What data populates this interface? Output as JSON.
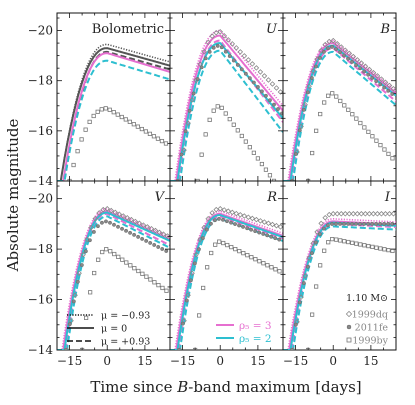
{
  "figure": {
    "xlabel_pre": "Time since ",
    "xlabel_b": "B",
    "xlabel_post": "-band maximum [days]",
    "ylabel": "Absolute magnitude"
  },
  "legend_mu": {
    "entries": [
      {
        "label": "μ = −0.93",
        "dash": "1.2,1.5"
      },
      {
        "label": "μ = 0",
        "dash": ""
      },
      {
        "label": "μ = +0.93",
        "dash": "6,3"
      }
    ]
  },
  "legend_rho": {
    "entries": [
      {
        "label": "ρ₅ = 3",
        "color": "#e66fd0"
      },
      {
        "label": "ρ₅ = 2",
        "color": "#2dbfd0"
      }
    ]
  },
  "legend_obs": {
    "title": "1.10 M⊙",
    "entries": [
      {
        "label": "1999dq",
        "marker": "diamond"
      },
      {
        "label": "2011fe",
        "marker": "circle"
      },
      {
        "label": "1999by",
        "marker": "square"
      }
    ]
  },
  "colors": {
    "rho3": "#e66fd0",
    "rho2": "#2dbfd0",
    "bolo": "#555555",
    "obs": "#888888"
  },
  "chart_data": [
    {
      "type": "line",
      "title": "Bolometric",
      "xlim": [
        -20,
        25
      ],
      "ylim": [
        -14,
        -20.7
      ],
      "xticks": [
        -15,
        0,
        15
      ],
      "yticks": [
        -20,
        -18,
        -16,
        -14
      ],
      "series": [
        {
          "color": "bolo",
          "style": "dotted",
          "peak": -19.45,
          "t0": -18.5,
          "decline": 0.028,
          "w": 8
        },
        {
          "color": "bolo",
          "style": "solid",
          "peak": -19.3,
          "t0": -18.5,
          "decline": 0.028,
          "w": 8
        },
        {
          "color": "bolo",
          "style": "dashed",
          "peak": -19.15,
          "t0": -17,
          "decline": 0.028,
          "w": 8
        },
        {
          "color": "rho3",
          "style": "solid",
          "peak": -19.1,
          "t0": -17.5,
          "decline": 0.03,
          "w": 8
        },
        {
          "color": "rho2",
          "style": "dashed",
          "peak": -18.8,
          "t0": -17,
          "decline": 0.03,
          "w": 8
        }
      ],
      "obs": [
        {
          "name": "1999by",
          "peak": -16.9,
          "t0": -15,
          "decline": 0.06,
          "w": 7
        }
      ]
    },
    {
      "type": "line",
      "title": "U",
      "xlim": [
        -20,
        25
      ],
      "ylim": [
        -14,
        -20.7
      ],
      "xticks": [
        -15,
        0,
        15
      ],
      "yticks": [
        -20,
        -18,
        -16,
        -14
      ],
      "series": [
        {
          "color": "rho3",
          "style": "dotted",
          "peak": -20.0,
          "t0": -18,
          "decline": 0.12,
          "w": 6
        },
        {
          "color": "rho3",
          "style": "solid",
          "peak": -19.8,
          "t0": -17.5,
          "decline": 0.12,
          "w": 6
        },
        {
          "color": "rho3",
          "style": "dashed",
          "peak": -19.6,
          "t0": -16.5,
          "decline": 0.13,
          "w": 6
        },
        {
          "color": "rho2",
          "style": "solid",
          "peak": -19.5,
          "t0": -17,
          "decline": 0.12,
          "w": 6
        },
        {
          "color": "rho2",
          "style": "dashed",
          "peak": -19.2,
          "t0": -16,
          "decline": 0.13,
          "w": 6
        }
      ],
      "obs": [
        {
          "name": "1999dq",
          "peak": -19.95,
          "t0": -16,
          "decline": 0.1,
          "w": 6
        },
        {
          "name": "2011fe",
          "peak": -19.4,
          "t0": -17,
          "decline": 0.11,
          "w": 6
        },
        {
          "name": "1999by",
          "peak": -17.0,
          "t0": -9,
          "decline": 0.14,
          "w": 5
        }
      ]
    },
    {
      "type": "line",
      "title": "B",
      "xlim": [
        -20,
        25
      ],
      "ylim": [
        -14,
        -20.7
      ],
      "xticks": [
        -15,
        0,
        15
      ],
      "yticks": [
        -20,
        -18,
        -16,
        -14
      ],
      "series": [
        {
          "color": "rho3",
          "style": "dotted",
          "peak": -19.6,
          "t0": -18,
          "decline": 0.08,
          "w": 8
        },
        {
          "color": "rho3",
          "style": "solid",
          "peak": -19.5,
          "t0": -17.5,
          "decline": 0.08,
          "w": 8
        },
        {
          "color": "rho3",
          "style": "dashed",
          "peak": -19.3,
          "t0": -16.5,
          "decline": 0.085,
          "w": 8
        },
        {
          "color": "rho2",
          "style": "solid",
          "peak": -19.4,
          "t0": -17,
          "decline": 0.08,
          "w": 8
        },
        {
          "color": "rho2",
          "style": "dashed",
          "peak": -19.15,
          "t0": -16,
          "decline": 0.085,
          "w": 8
        }
      ],
      "obs": [
        {
          "name": "1999dq",
          "peak": -19.6,
          "t0": -16,
          "decline": 0.08,
          "w": 7
        },
        {
          "name": "2011fe",
          "peak": -19.35,
          "t0": -16.5,
          "decline": 0.08,
          "w": 7
        },
        {
          "name": "1999by",
          "peak": -17.5,
          "t0": -10,
          "decline": 0.11,
          "w": 5
        }
      ]
    },
    {
      "type": "line",
      "title": "V",
      "xlim": [
        -20,
        25
      ],
      "ylim": [
        -14,
        -20.7
      ],
      "xticks": [
        -15,
        0,
        15
      ],
      "yticks": [
        -20,
        -18,
        -16,
        -14
      ],
      "series": [
        {
          "color": "rho3",
          "style": "dotted",
          "peak": -19.6,
          "t0": -18,
          "decline": 0.045,
          "w": 9
        },
        {
          "color": "rho3",
          "style": "solid",
          "peak": -19.5,
          "t0": -17.5,
          "decline": 0.045,
          "w": 9
        },
        {
          "color": "rho3",
          "style": "dashed",
          "peak": -19.4,
          "t0": -16.5,
          "decline": 0.05,
          "w": 9
        },
        {
          "color": "rho2",
          "style": "solid",
          "peak": -19.45,
          "t0": -17,
          "decline": 0.045,
          "w": 9
        },
        {
          "color": "rho2",
          "style": "dashed",
          "peak": -19.3,
          "t0": -16,
          "decline": 0.05,
          "w": 9
        }
      ],
      "obs": [
        {
          "name": "1999dq",
          "peak": -19.6,
          "t0": -16,
          "decline": 0.045,
          "w": 8
        },
        {
          "name": "2011fe",
          "peak": -19.1,
          "t0": -16.5,
          "decline": 0.05,
          "w": 8
        },
        {
          "name": "1999by",
          "peak": -18.0,
          "t0": -10,
          "decline": 0.07,
          "w": 6
        }
      ]
    },
    {
      "type": "line",
      "title": "R",
      "xlim": [
        -20,
        25
      ],
      "ylim": [
        -14,
        -20.7
      ],
      "xticks": [
        -15,
        0,
        15
      ],
      "yticks": [
        -20,
        -18,
        -16,
        -14
      ],
      "series": [
        {
          "color": "rho3",
          "style": "dotted",
          "peak": -19.5,
          "t0": -18,
          "decline": 0.035,
          "w": 10
        },
        {
          "color": "rho3",
          "style": "solid",
          "peak": -19.4,
          "t0": -17.5,
          "decline": 0.035,
          "w": 10
        },
        {
          "color": "rho3",
          "style": "dashed",
          "peak": -19.3,
          "t0": -16.5,
          "decline": 0.035,
          "w": 10
        },
        {
          "color": "rho2",
          "style": "solid",
          "peak": -19.35,
          "t0": -17,
          "decline": 0.035,
          "w": 10
        },
        {
          "color": "rho2",
          "style": "dashed",
          "peak": -19.2,
          "t0": -16,
          "decline": 0.035,
          "w": 10
        }
      ],
      "obs": [
        {
          "name": "1999dq",
          "peak": -19.6,
          "t0": -16,
          "decline": 0.03,
          "w": 9
        },
        {
          "name": "2011fe",
          "peak": -19.2,
          "t0": -16.5,
          "decline": 0.035,
          "w": 9
        },
        {
          "name": "1999by",
          "peak": -18.3,
          "t0": -10,
          "decline": 0.05,
          "w": 7
        }
      ]
    },
    {
      "type": "line",
      "title": "I",
      "xlim": [
        -20,
        25
      ],
      "ylim": [
        -14,
        -20.7
      ],
      "xticks": [
        -15,
        0,
        15
      ],
      "yticks": [
        -20,
        -18,
        -16,
        -14
      ],
      "series": [
        {
          "color": "rho3",
          "style": "dotted",
          "peak": -19.2,
          "t0": -18,
          "decline": 0.005,
          "w": 10
        },
        {
          "color": "rho3",
          "style": "solid",
          "peak": -19.1,
          "t0": -17.5,
          "decline": 0.005,
          "w": 10
        },
        {
          "color": "rho3",
          "style": "dashed",
          "peak": -19.0,
          "t0": -16.5,
          "decline": 0.005,
          "w": 10
        },
        {
          "color": "rho2",
          "style": "solid",
          "peak": -19.05,
          "t0": -17,
          "decline": 0.005,
          "w": 10
        },
        {
          "color": "rho2",
          "style": "dashed",
          "peak": -18.9,
          "t0": -16,
          "decline": 0.005,
          "w": 10
        }
      ],
      "obs": [
        {
          "name": "1999dq",
          "peak": -19.4,
          "t0": -16,
          "decline": 0.0,
          "w": 10
        },
        {
          "name": "2011fe",
          "peak": -19.0,
          "t0": -16.5,
          "decline": 0.0,
          "w": 10
        },
        {
          "name": "1999by",
          "peak": -18.4,
          "t0": -10,
          "decline": 0.02,
          "w": 8
        }
      ]
    }
  ]
}
